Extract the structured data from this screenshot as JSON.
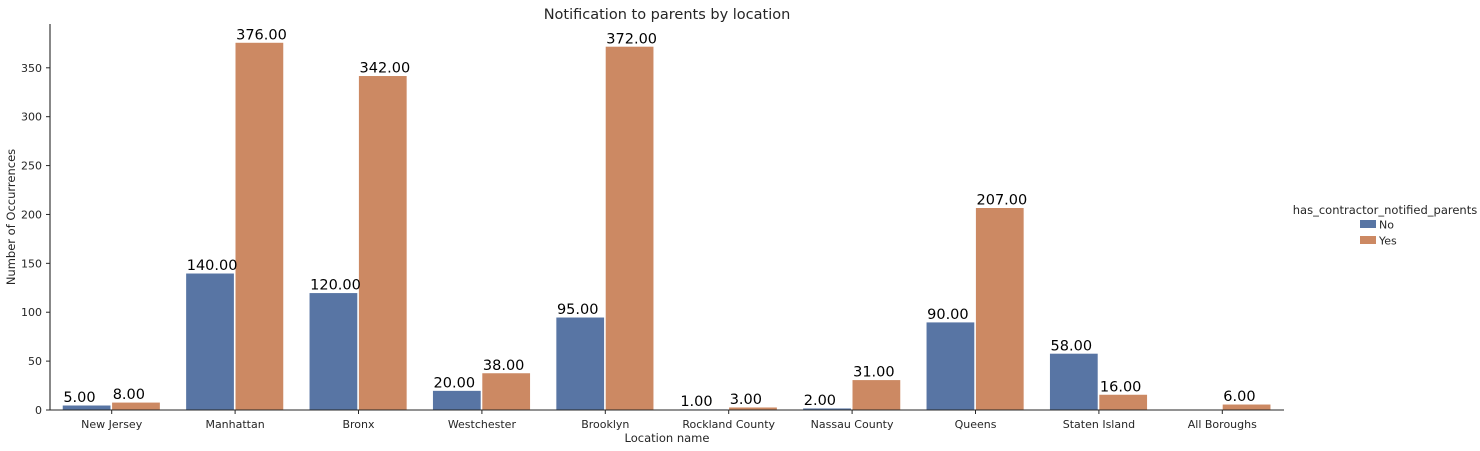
{
  "chart_data": {
    "type": "bar",
    "title": "Notification to parents by location",
    "xlabel": "Location name",
    "ylabel": "Number of Occurrences",
    "categories": [
      "New Jersey",
      "Manhattan",
      "Bronx",
      "Westchester",
      "Brooklyn",
      "Rockland County",
      "Nassau County",
      "Queens",
      "Staten Island",
      "All Boroughs"
    ],
    "series": [
      {
        "name": "No",
        "color": "#5875a4",
        "values": [
          5,
          140,
          120,
          20,
          95,
          1,
          2,
          90,
          58,
          null
        ],
        "labels": [
          "5.00",
          "140.00",
          "120.00",
          "20.00",
          "95.00",
          "1.00",
          "2.00",
          "90.00",
          "58.00",
          null
        ]
      },
      {
        "name": "Yes",
        "color": "#cc8963",
        "values": [
          8,
          376,
          342,
          38,
          372,
          3,
          31,
          207,
          16,
          6
        ],
        "labels": [
          "8.00",
          "376.00",
          "342.00",
          "38.00",
          "372.00",
          "3.00",
          "31.00",
          "207.00",
          "16.00",
          "6.00"
        ]
      }
    ],
    "yticks": [
      "0",
      "50",
      "100",
      "150",
      "200",
      "250",
      "300",
      "350"
    ],
    "ylim": [
      0,
      394.8
    ],
    "grid": false,
    "legend": {
      "title": "has_contractor_notified_parents",
      "position": "right"
    }
  }
}
